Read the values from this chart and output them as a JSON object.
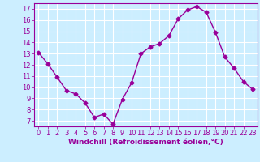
{
  "x": [
    0,
    1,
    2,
    3,
    4,
    5,
    6,
    7,
    8,
    9,
    10,
    11,
    12,
    13,
    14,
    15,
    16,
    17,
    18,
    19,
    20,
    21,
    22,
    23
  ],
  "y": [
    13.1,
    12.1,
    10.9,
    9.7,
    9.4,
    8.6,
    7.3,
    7.6,
    6.7,
    8.9,
    10.4,
    13.0,
    13.6,
    13.9,
    14.6,
    16.1,
    16.9,
    17.2,
    16.7,
    14.9,
    12.7,
    11.7,
    10.5,
    9.8
  ],
  "line_color": "#990099",
  "marker": "D",
  "marker_size": 2.5,
  "linewidth": 1.0,
  "bg_color": "#cceeff",
  "grid_color": "#ffffff",
  "xlabel": "Windchill (Refroidissement éolien,°C)",
  "xlabel_fontsize": 6.5,
  "tick_fontsize": 6.0,
  "ylim": [
    6.5,
    17.5
  ],
  "yticks": [
    7,
    8,
    9,
    10,
    11,
    12,
    13,
    14,
    15,
    16,
    17
  ],
  "xlim": [
    -0.5,
    23.5
  ],
  "xticks": [
    0,
    1,
    2,
    3,
    4,
    5,
    6,
    7,
    8,
    9,
    10,
    11,
    12,
    13,
    14,
    15,
    16,
    17,
    18,
    19,
    20,
    21,
    22,
    23
  ]
}
